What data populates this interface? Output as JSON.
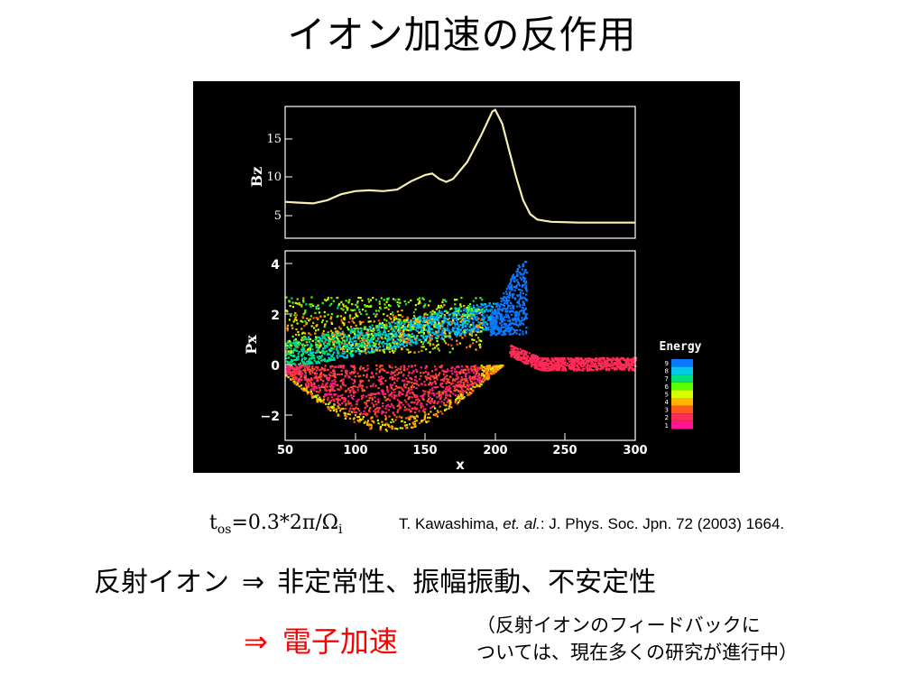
{
  "title": "イオン加速の反作用",
  "figure": {
    "top_panel": {
      "ylabel": "Bz",
      "yticks": [
        "5",
        "10",
        "15"
      ]
    },
    "bottom_panel": {
      "ylabel": "Px",
      "yticks": [
        "4",
        "2",
        "0",
        "−2"
      ],
      "xticks": [
        "50",
        "100",
        "150",
        "200",
        "250",
        "300"
      ],
      "xlabel": "x"
    },
    "legend": {
      "title": "Energy",
      "levels": [
        "9",
        "8",
        "7",
        "6",
        "5",
        "4",
        "3",
        "2",
        "1"
      ]
    },
    "colors": {
      "curve": "#f5f0b0",
      "energy_scale": [
        "#ff1493",
        "#ff2a55",
        "#ff5a1a",
        "#ffb400",
        "#d8ff00",
        "#5aff00",
        "#00e07a",
        "#00c8e6",
        "#0a78ff"
      ]
    }
  },
  "tos": {
    "t": "t",
    "sub_os": "os",
    "expr": "=0.3*2π/Ω",
    "sub_i": "i"
  },
  "reference": {
    "authors": "T. Kawashima, ",
    "etal": "et. al.",
    "rest": ": J. Phys. Soc. Jpn. 72 (2003) 1664."
  },
  "line1": {
    "subject": "反射イオン",
    "arrow": "⇒",
    "effect": "非定常性、振幅振動、不安定性"
  },
  "line2": {
    "arrow": "⇒",
    "effect": "電子加速"
  },
  "note": {
    "line1": "（反射イオンのフィードバックに",
    "line2": "ついては、現在多くの研究が進行中）"
  }
}
